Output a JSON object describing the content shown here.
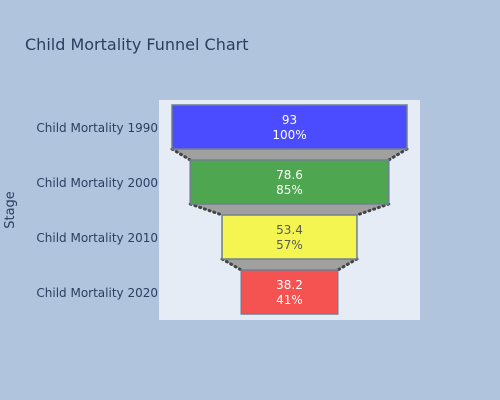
{
  "chart_data": {
    "type": "funnel",
    "title": "Child Mortality Funnel Chart",
    "ylabel": "Stage",
    "categories": [
      "Child Mortality 1990",
      "Child Mortality 2000",
      "Child Mortality 2010",
      "Child Mortality 2020"
    ],
    "values": [
      93,
      78.6,
      53.4,
      38.2
    ],
    "percent_of_initial": [
      "100%",
      "85%",
      "57%",
      "41%"
    ],
    "colors": [
      "#4b4bff",
      "#4fa650",
      "#f5f552",
      "#f55252"
    ],
    "text_colors": [
      "#ffffff",
      "#ffffff",
      "#5a5a5a",
      "#ffffff"
    ],
    "connector_color": "#a0a0a0",
    "plot_background": "#e5ecf6",
    "page_background": "#b0c4de"
  }
}
